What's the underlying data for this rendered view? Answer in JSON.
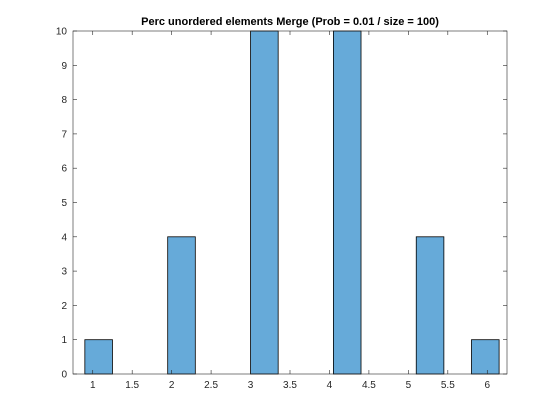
{
  "chart_data": {
    "type": "bar",
    "title": "Perc unordered elements Merge (Prob = 0.01 / size = 100)",
    "xlabel": "",
    "ylabel": "",
    "bin_edges": [
      0.9,
      1.25,
      1.6,
      1.95,
      2.3,
      2.65,
      3.0,
      3.35,
      3.7,
      4.05,
      4.4,
      4.75,
      5.1,
      5.45,
      5.8,
      6.15
    ],
    "values": [
      1,
      0,
      0,
      4,
      0,
      0,
      10,
      0,
      0,
      10,
      0,
      0,
      4,
      0,
      1
    ],
    "xlim": [
      0.75,
      6.25
    ],
    "ylim": [
      0,
      10
    ],
    "xticks": [
      "1",
      "1.5",
      "2",
      "2.5",
      "3",
      "3.5",
      "4",
      "4.5",
      "5",
      "5.5",
      "6"
    ],
    "yticks": [
      "0",
      "1",
      "2",
      "3",
      "4",
      "5",
      "6",
      "7",
      "8",
      "9",
      "10"
    ],
    "grid": false,
    "bar_color": "#66aad9",
    "edge_color": "#000000"
  }
}
